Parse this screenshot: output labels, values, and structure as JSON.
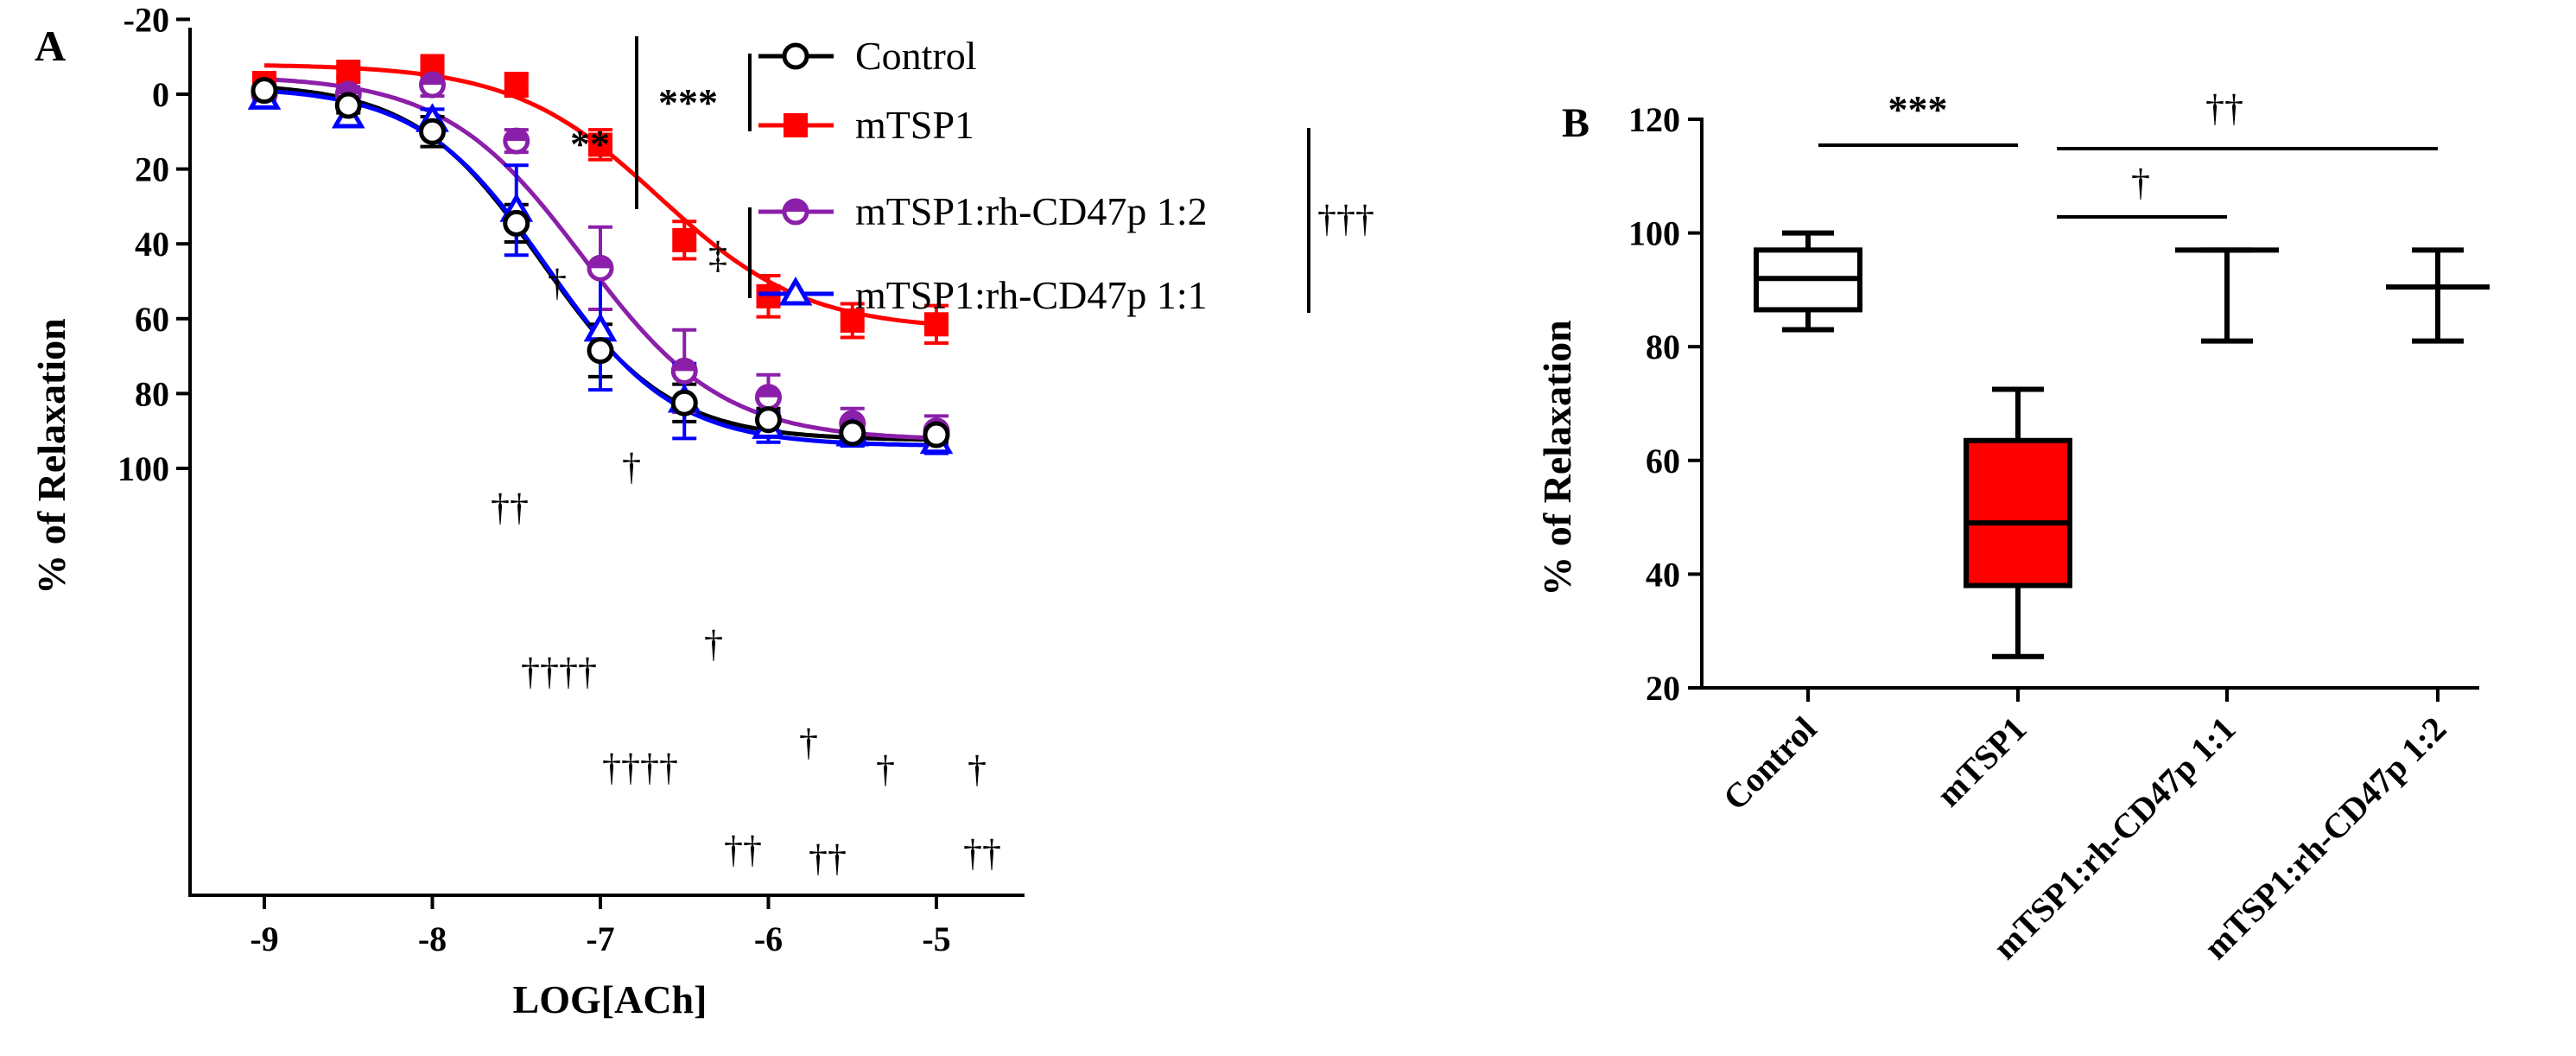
{
  "chart_data": [
    {
      "panel": "A",
      "type": "line",
      "xlabel": "LOG[ACh]",
      "ylabel": "% of Relaxation",
      "xlim": [
        -9.45,
        -4.55
      ],
      "ylim": [
        100,
        -20
      ],
      "y_reversed": true,
      "x_ticks": [
        -9,
        -8,
        -7,
        -6,
        -5
      ],
      "y_ticks": [
        -20,
        0,
        20,
        40,
        60,
        80,
        100
      ],
      "x_tick_labels": [
        "-9",
        "-8",
        "-7",
        "-6",
        "-5"
      ],
      "y_tick_labels": [
        "-20",
        "0",
        "20",
        "40",
        "60",
        "80",
        "100"
      ],
      "x": [
        -9,
        -8.5,
        -8,
        -7.5,
        -7,
        -6.5,
        -6,
        -5.5,
        -5
      ],
      "series": [
        {
          "name": "Control",
          "color": "#000000",
          "marker": "circle-open",
          "values": [
            -1,
            3,
            10,
            34.5,
            68.5,
            82.5,
            87,
            90.5,
            91
          ],
          "errors": [
            1.5,
            2,
            4,
            5,
            7,
            5,
            3,
            3,
            2
          ],
          "fit": {
            "top": -3,
            "bottom": 92.5,
            "logec50": -7.35,
            "hill": 1.15
          }
        },
        {
          "name": "mTSP1",
          "color": "#ff0000",
          "marker": "square-filled",
          "values": [
            -3,
            -6,
            -7.5,
            -2.5,
            13.5,
            39,
            54,
            60.5,
            61.5
          ],
          "errors": [
            1.5,
            1.5,
            2.5,
            3,
            4,
            5,
            5.5,
            4.5,
            5
          ],
          "fit": {
            "top": -8,
            "bottom": 63,
            "logec50": -6.65,
            "hill": 1.0
          }
        },
        {
          "name": "mTSP1:rh-CD47p 1:2",
          "color": "#8B1FA9",
          "marker": "circle-half",
          "values": [
            0,
            0,
            -2.5,
            12.5,
            46.5,
            74,
            81,
            88,
            90
          ],
          "errors": [
            1.5,
            2,
            3,
            3,
            11,
            11,
            6,
            4,
            4
          ],
          "fit": {
            "top": -5,
            "bottom": 92.5,
            "logec50": -7.1,
            "hill": 1.05
          }
        },
        {
          "name": "mTSP1:rh-CD47p 1:1",
          "color": "#0000ff",
          "marker": "triangle-open",
          "values": [
            1,
            6,
            7,
            31,
            63,
            82,
            89,
            91,
            93
          ],
          "errors": [
            2,
            2,
            3,
            12,
            16,
            10,
            4,
            3,
            3
          ],
          "fit": {
            "top": -2,
            "bottom": 94,
            "logec50": -7.32,
            "hill": 1.15
          }
        }
      ],
      "annotations": {
        "point_daggers": [
          "††",
          "†",
          "†",
          "††††",
          "†",
          "††††",
          "†",
          "††",
          "††",
          "†",
          "†",
          "††"
        ],
        "bracket_stars_inner": "***",
        "bracket_stars_outer": "**",
        "bracket_double_dagger": "‡",
        "bracket_right_daggers": "†††"
      }
    },
    {
      "panel": "B",
      "type": "box",
      "ylabel": "% of Relaxation",
      "ylim": [
        20,
        120
      ],
      "y_ticks": [
        20,
        40,
        60,
        80,
        100,
        120
      ],
      "y_tick_labels": [
        "20",
        "40",
        "60",
        "80",
        "100",
        "120"
      ],
      "categories": [
        "Control",
        "mTSP1",
        "mTSP1:rh-CD47p 1:1",
        "mTSP1:rh-CD47p 1:2"
      ],
      "boxes": [
        {
          "min": 83,
          "q1": 86.5,
          "median": 92,
          "q3": 97,
          "max": 100,
          "fill": "#ffffff"
        },
        {
          "min": 25.5,
          "q1": 38,
          "median": 49,
          "q3": 63.5,
          "max": 72.5,
          "fill": "#ff0000"
        },
        {
          "min": 81,
          "q1": 97,
          "median": 97,
          "q3": 97,
          "max": 97,
          "fill": "#ffffff"
        },
        {
          "min": 81,
          "q1": 90.5,
          "median": 90.5,
          "q3": 90.5,
          "max": 97,
          "fill": "#ffffff"
        }
      ],
      "annotations": {
        "control_vs_mtsp1": "***",
        "mtsp1_vs_11": "†",
        "mtsp1_vs_12": "††"
      }
    }
  ]
}
